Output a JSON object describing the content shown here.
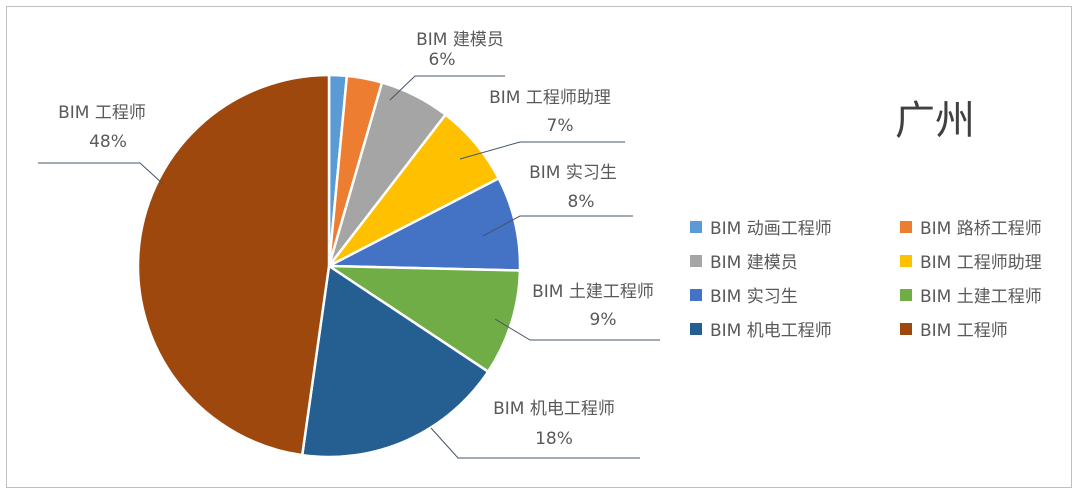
{
  "chart_data": {
    "type": "pie",
    "title": "广州",
    "slices": [
      {
        "label": "BIM 动画工程师",
        "value": 1.5,
        "color": "#5B9BD5",
        "show_label": false,
        "data_label": ""
      },
      {
        "label": "BIM 路桥工程师",
        "value": 3,
        "color": "#ED7D31",
        "show_label": false,
        "data_label": ""
      },
      {
        "label": "BIM 建模员",
        "value": 6,
        "color": "#A5A5A5",
        "show_label": true,
        "data_label": "6%"
      },
      {
        "label": "BIM 工程师助理",
        "value": 7,
        "color": "#FFC000",
        "show_label": true,
        "data_label": "7%"
      },
      {
        "label": "BIM 实习生",
        "value": 8,
        "color": "#4472C4",
        "show_label": true,
        "data_label": "8%"
      },
      {
        "label": "BIM 土建工程师",
        "value": 9,
        "color": "#70AD47",
        "show_label": true,
        "data_label": "9%"
      },
      {
        "label": "BIM 机电工程师",
        "value": 18,
        "color": "#255E91",
        "show_label": true,
        "data_label": "18%"
      },
      {
        "label": "BIM 工程师",
        "value": 48,
        "color": "#9E480E",
        "show_label": true,
        "data_label": "48%"
      }
    ],
    "legend_position": "right"
  }
}
